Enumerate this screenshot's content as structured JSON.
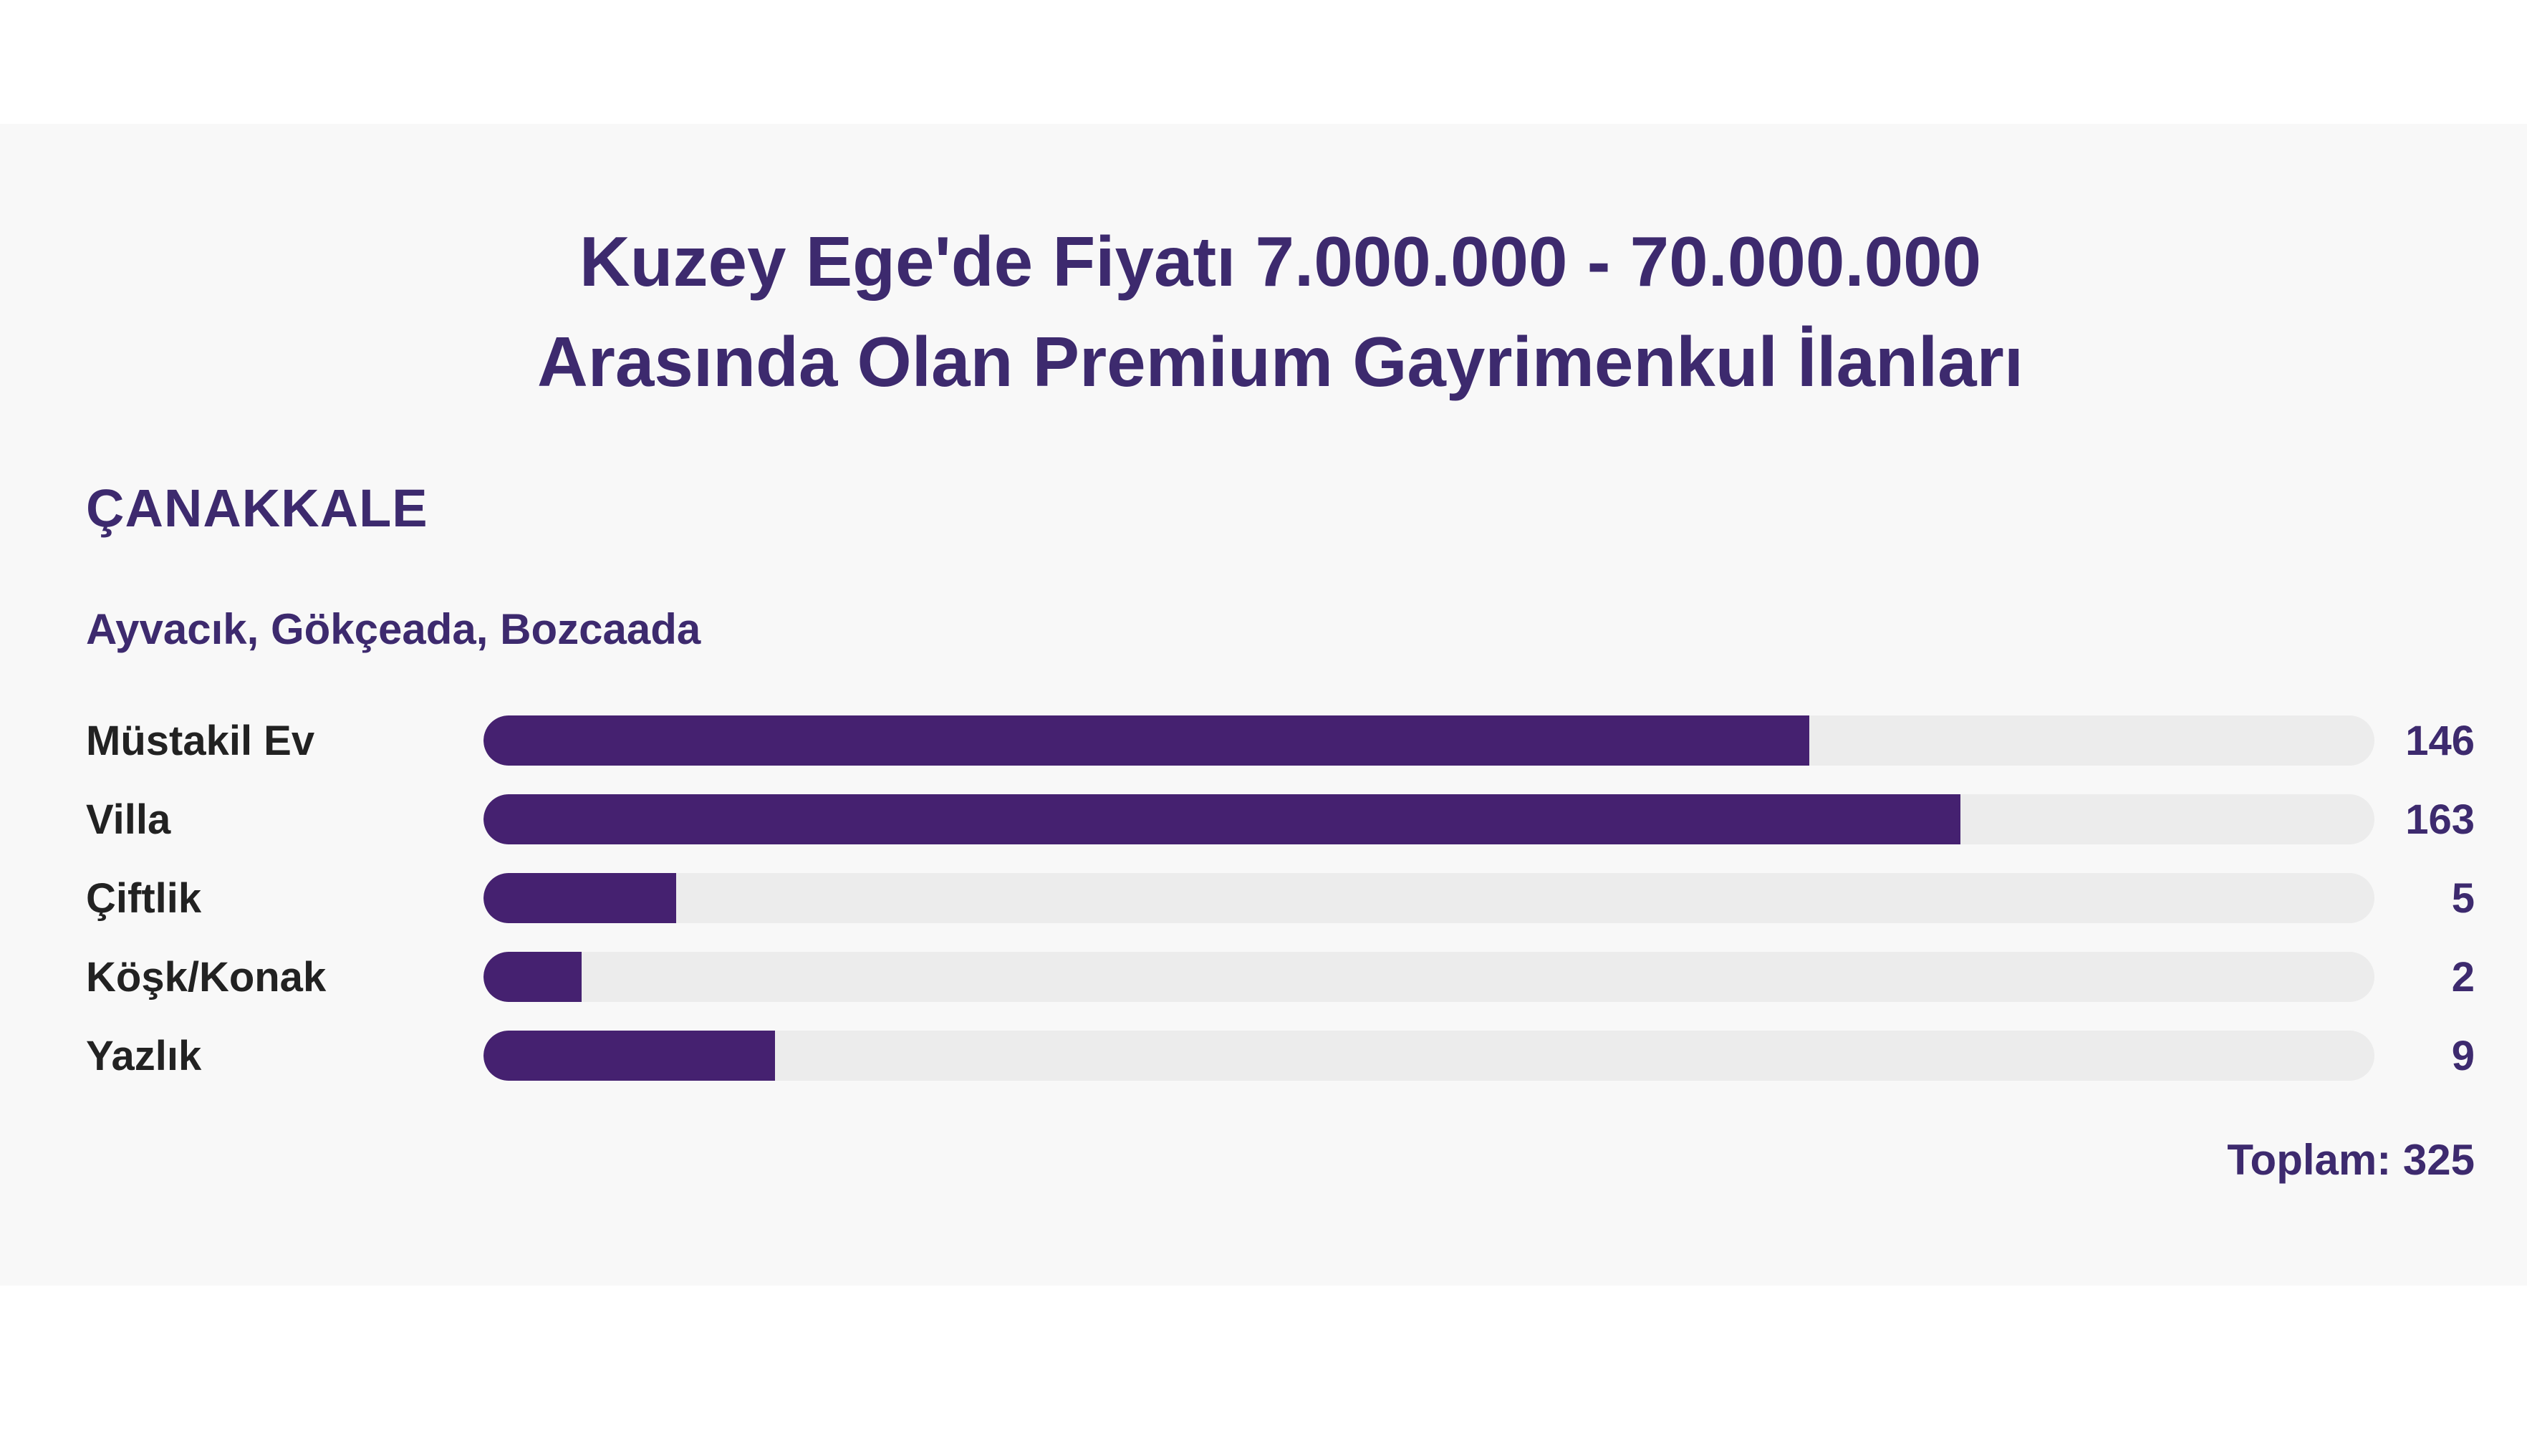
{
  "title": {
    "line1": "Kuzey Ege'de Fiyatı 7.000.000 - 70.000.000",
    "line2": "Arasında Olan Premium Gayrimenkul İlanları"
  },
  "region": {
    "name": "ÇANAKKALE",
    "districts": "Ayvacık, Gökçeada, Bozcaada"
  },
  "total": {
    "label": "Toplam: 325",
    "value": 325
  },
  "chart_data": {
    "type": "bar",
    "orientation": "horizontal",
    "title": "Kuzey Ege'de Fiyatı 7.000.000 - 70.000.000 Arasında Olan Premium Gayrimenkul İlanları",
    "subtitle": "ÇANAKKALE — Ayvacık, Gökçeada, Bozcaada",
    "categories": [
      "Müstakil Ev",
      "Villa",
      "Çiftlik",
      "Köşk/Konak",
      "Yazlık"
    ],
    "values": [
      146,
      163,
      5,
      2,
      9
    ],
    "total": 325,
    "bar_fill_percents": [
      70.1,
      78.1,
      10.2,
      5.2,
      15.4
    ],
    "value_labels_position": "right",
    "grid": false,
    "legend": false,
    "colors": {
      "bar_fill": "#452170",
      "bar_track": "#ececec",
      "heading_text": "#3d2a6e",
      "label_text": "#222222",
      "band_background": "#f8f8f8",
      "page_background": "#ffffff"
    }
  }
}
